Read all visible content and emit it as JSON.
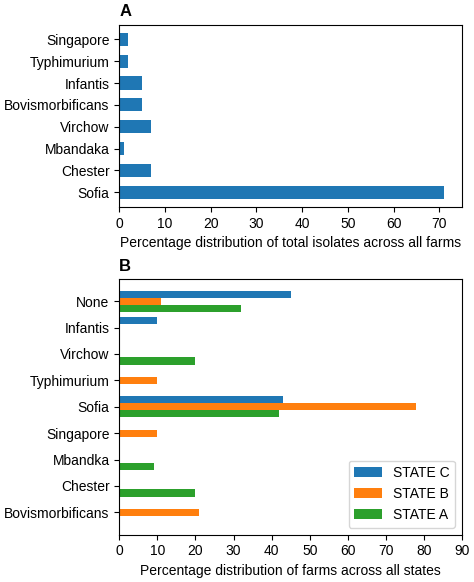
{
  "chart_data": [
    {
      "type": "bar",
      "orientation": "horizontal",
      "title": "A",
      "categories": [
        "Sofia",
        "Chester",
        "Mbandaka",
        "Virchow",
        "Bovismorbificans",
        "Infantis",
        "Typhimurium",
        "Singapore"
      ],
      "values": [
        71,
        7,
        1,
        7,
        5,
        5,
        2,
        2
      ],
      "xlabel": "Percentage distribution of total isolates across all farms",
      "xlim": [
        0,
        75
      ],
      "xticks": [
        0,
        10,
        20,
        30,
        40,
        50,
        60,
        70
      ]
    },
    {
      "type": "bar",
      "orientation": "horizontal",
      "title": "B",
      "categories": [
        "Bovismorbificans",
        "Chester",
        "Mbandka",
        "Singapore",
        "Sofia",
        "Typhimurium",
        "Virchow",
        "Infantis",
        "None"
      ],
      "series": [
        {
          "name": "STATE C",
          "values": [
            0,
            0,
            0,
            0,
            43,
            0,
            0,
            10,
            45
          ]
        },
        {
          "name": "STATE B",
          "values": [
            21,
            0,
            0,
            10,
            78,
            10,
            0,
            0,
            11
          ]
        },
        {
          "name": "STATE A",
          "values": [
            0,
            20,
            9,
            0,
            42,
            0,
            20,
            0,
            32
          ]
        }
      ],
      "xlabel": "Percentage distribution of farms across all states",
      "xlim": [
        0,
        90
      ],
      "xticks": [
        0,
        10,
        20,
        30,
        40,
        50,
        60,
        70,
        80,
        90
      ],
      "legend": "lower right"
    }
  ]
}
